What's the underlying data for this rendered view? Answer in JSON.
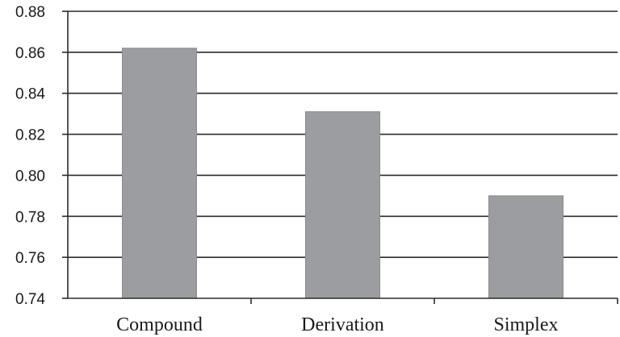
{
  "chart_data": {
    "type": "bar",
    "categories": [
      "Compound",
      "Derivation",
      "Simplex"
    ],
    "values": [
      0.862,
      0.831,
      0.79
    ],
    "title": "",
    "xlabel": "",
    "ylabel": "",
    "ylim": [
      0.74,
      0.88
    ],
    "yticks": [
      "0.74",
      "0.76",
      "0.78",
      "0.80",
      "0.82",
      "0.84",
      "0.86",
      "0.88"
    ],
    "grid": true,
    "legend": "none",
    "colors": {
      "bar": "#9c9da1",
      "bar_edge": "#8a8b8f",
      "grid": "#2b2b2b",
      "axis": "#2b2b2b",
      "text": "#1a1a1a"
    }
  }
}
